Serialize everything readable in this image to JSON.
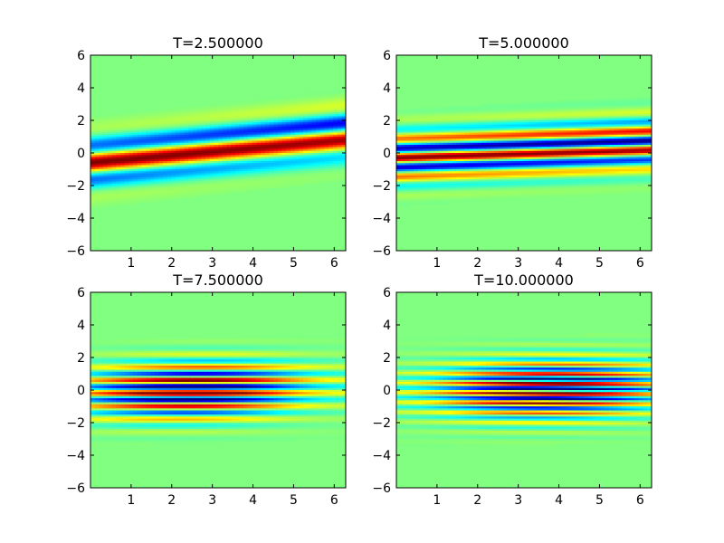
{
  "chart_data": [
    {
      "type": "heatmap",
      "title": "T=2.500000",
      "xlabel": "",
      "ylabel": "",
      "xlim": [
        0,
        6.283
      ],
      "ylim": [
        -6,
        6
      ],
      "xticks": [
        1,
        2,
        3,
        4,
        5,
        6
      ],
      "yticks": [
        -6,
        -4,
        -2,
        0,
        2,
        4,
        6
      ],
      "colormap": "jet",
      "background_value": 0,
      "description_params": {
        "slope": 0.28,
        "center": -0.6,
        "sigma": 1.0,
        "bands": 2
      }
    },
    {
      "type": "heatmap",
      "title": "T=5.000000",
      "xlabel": "",
      "ylabel": "",
      "xlim": [
        0,
        6.283
      ],
      "ylim": [
        -6,
        6
      ],
      "xticks": [
        1,
        2,
        3,
        4,
        5,
        6
      ],
      "yticks": [
        -6,
        -4,
        -2,
        0,
        2,
        4,
        6
      ],
      "colormap": "jet",
      "background_value": 0,
      "description_params": {
        "slope": 0.14,
        "center": -0.3,
        "sigma": 1.05,
        "bands": 4
      }
    },
    {
      "type": "heatmap",
      "title": "T=7.500000",
      "xlabel": "",
      "ylabel": "",
      "xlim": [
        0,
        6.283
      ],
      "ylim": [
        -6,
        6
      ],
      "xticks": [
        1,
        2,
        3,
        4,
        5,
        6
      ],
      "yticks": [
        -6,
        -4,
        -2,
        0,
        2,
        4,
        6
      ],
      "colormap": "jet",
      "background_value": 0,
      "description_params": {
        "slope": 0.07,
        "center": -0.2,
        "sigma": 1.15,
        "bands": 6
      }
    },
    {
      "type": "heatmap",
      "title": "T=10.000000",
      "xlabel": "",
      "ylabel": "",
      "xlim": [
        0,
        6.283
      ],
      "ylim": [
        -6,
        6
      ],
      "xticks": [
        1,
        2,
        3,
        4,
        5,
        6
      ],
      "yticks": [
        -6,
        -4,
        -2,
        0,
        2,
        4,
        6
      ],
      "colormap": "jet",
      "background_value": 0,
      "description_params": {
        "slope": 0.05,
        "center": -0.15,
        "sigma": 1.2,
        "bands": 8
      }
    }
  ]
}
